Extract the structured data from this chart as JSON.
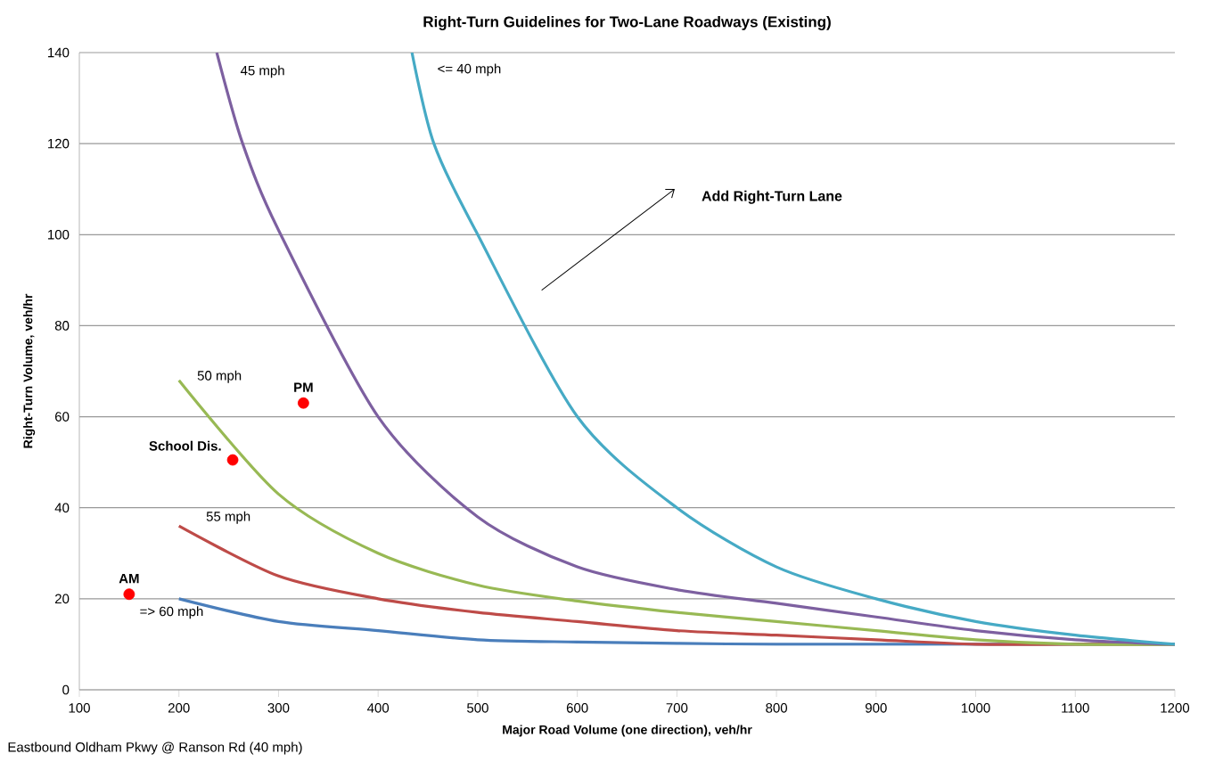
{
  "chart_data": {
    "type": "line",
    "title": "Right-Turn Guidelines for Two-Lane Roadways (Existing)",
    "xlabel": "Major Road Volume (one direction), veh/hr",
    "ylabel": "Right-Turn Volume, veh/hr",
    "xlim": [
      100,
      1200
    ],
    "ylim": [
      0,
      140
    ],
    "xticks": [
      100,
      200,
      300,
      400,
      500,
      600,
      700,
      800,
      900,
      1000,
      1100,
      1200
    ],
    "yticks": [
      0,
      20,
      40,
      60,
      80,
      100,
      120,
      140
    ],
    "grid": "y",
    "legend": false,
    "line_style": "solid",
    "series": [
      {
        "name": "=> 60 mph",
        "color": "#4a7ebb",
        "x": [
          200,
          300,
          400,
          500,
          600,
          700,
          800,
          900,
          1000,
          1100,
          1200
        ],
        "values": [
          20,
          15,
          13,
          11,
          10.5,
          10.2,
          10,
          10,
          10,
          10,
          10
        ]
      },
      {
        "name": "55 mph",
        "color": "#be4b48",
        "x": [
          200,
          300,
          400,
          500,
          600,
          700,
          800,
          900,
          1000,
          1100,
          1200
        ],
        "values": [
          36,
          25,
          20,
          17,
          15,
          13,
          12,
          11,
          10,
          10,
          10
        ]
      },
      {
        "name": "50 mph",
        "color": "#98b954",
        "x": [
          200,
          300,
          400,
          500,
          600,
          700,
          800,
          900,
          1000,
          1100,
          1200
        ],
        "values": [
          68,
          43,
          30,
          23,
          19.5,
          17,
          15,
          13,
          11,
          10,
          10
        ]
      },
      {
        "name": "45 mph",
        "color": "#7d60a0",
        "x": [
          238,
          264,
          300,
          400,
          500,
          600,
          700,
          800,
          900,
          1000,
          1100,
          1200
        ],
        "values": [
          140,
          120,
          101,
          60,
          38,
          27,
          22,
          19,
          16,
          13,
          11,
          10
        ]
      },
      {
        "name": "<= 40 mph",
        "color": "#46aac5",
        "x": [
          434,
          456,
          500,
          600,
          700,
          800,
          900,
          1000,
          1100,
          1200
        ],
        "values": [
          140,
          120,
          100,
          60,
          40,
          27,
          20,
          15,
          12,
          10
        ]
      },
      {
        "type": "scatter",
        "color": "#ff0000",
        "marker": "circle",
        "x": [
          150,
          254,
          325
        ],
        "values": [
          21,
          50.5,
          63
        ]
      }
    ],
    "annotations": [
      {
        "text": "AM",
        "x": 150,
        "y": 21
      },
      {
        "text": "School Dis.",
        "x": 254,
        "y": 50.5
      },
      {
        "text": "PM",
        "x": 325,
        "y": 63
      },
      "Add Right-Turn Lane",
      "Eastbound Oldham Pkwy @ Ranson Rd (40 mph)"
    ]
  }
}
